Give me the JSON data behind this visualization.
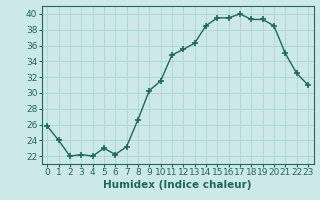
{
  "x": [
    0,
    1,
    2,
    3,
    4,
    5,
    6,
    7,
    8,
    9,
    10,
    11,
    12,
    13,
    14,
    15,
    16,
    17,
    18,
    19,
    20,
    21,
    22,
    23
  ],
  "y": [
    25.8,
    24.0,
    22.0,
    22.2,
    22.0,
    23.0,
    22.2,
    23.2,
    26.6,
    30.3,
    31.5,
    34.8,
    35.5,
    36.3,
    38.5,
    39.5,
    39.5,
    40.0,
    39.3,
    39.3,
    38.5,
    35.0,
    32.5,
    31.0
  ],
  "line_color": "#1a6b5a",
  "marker": "+",
  "bg_color": "#cce8e8",
  "grid_color": "#add4d4",
  "xlabel": "Humidex (Indice chaleur)",
  "xlim": [
    -0.5,
    23.5
  ],
  "ylim": [
    21,
    41
  ],
  "yticks": [
    22,
    24,
    26,
    28,
    30,
    32,
    34,
    36,
    38,
    40
  ],
  "xticks": [
    0,
    1,
    2,
    3,
    4,
    5,
    6,
    7,
    8,
    9,
    10,
    11,
    12,
    13,
    14,
    15,
    16,
    17,
    18,
    19,
    20,
    21,
    22,
    23
  ],
  "xlabel_fontsize": 7.5,
  "tick_fontsize": 6.5,
  "linewidth": 1.0,
  "markersize": 4.0
}
